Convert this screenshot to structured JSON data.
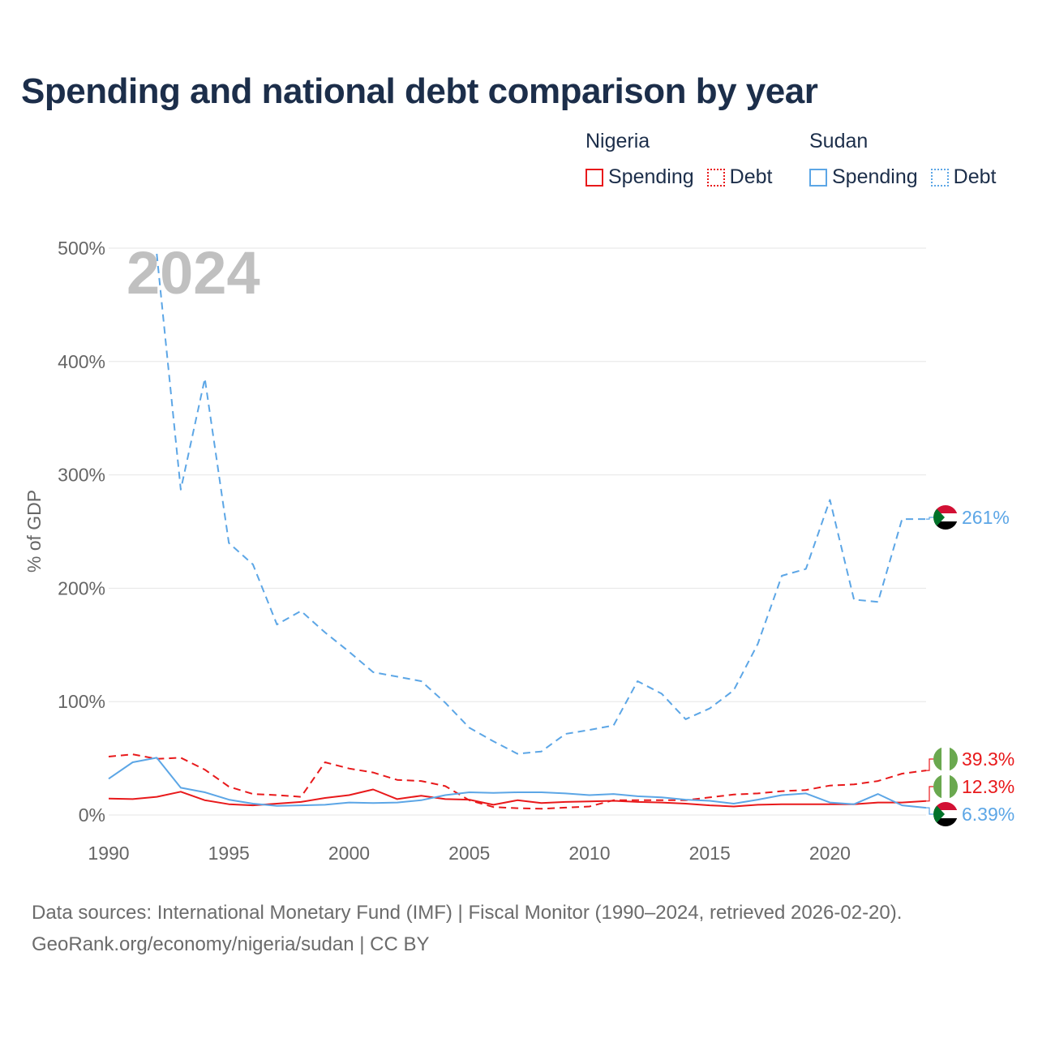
{
  "title": "Spending and national debt comparison by year",
  "legend": {
    "groups": [
      {
        "country": "Nigeria",
        "color": "#e8191b",
        "items": [
          "Spending",
          "Debt"
        ]
      },
      {
        "country": "Sudan",
        "color": "#5ca6e6",
        "items": [
          "Spending",
          "Debt"
        ]
      }
    ]
  },
  "footer": {
    "line1": "Data sources: International Monetary Fund (IMF) | Fiscal Monitor (1990–2024, retrieved 2026-02-20).",
    "line2": "GeoRank.org/economy/nigeria/sudan | CC BY"
  },
  "chart_data": {
    "type": "line",
    "year_label": "2024",
    "ylabel": "% of GDP",
    "ylim": [
      0,
      500
    ],
    "xlim": [
      1990,
      2024
    ],
    "yticks": [
      0,
      100,
      200,
      300,
      400,
      500
    ],
    "ytick_labels": [
      "0%",
      "100%",
      "200%",
      "300%",
      "400%",
      "500%"
    ],
    "xticks": [
      1990,
      1995,
      2000,
      2005,
      2010,
      2015,
      2020
    ],
    "xtick_labels": [
      "1990",
      "1995",
      "2000",
      "2005",
      "2010",
      "2015",
      "2020"
    ],
    "x": [
      1990,
      1991,
      1992,
      1993,
      1994,
      1995,
      1996,
      1997,
      1998,
      1999,
      2000,
      2001,
      2002,
      2003,
      2004,
      2005,
      2006,
      2007,
      2008,
      2009,
      2010,
      2011,
      2012,
      2013,
      2014,
      2015,
      2016,
      2017,
      2018,
      2019,
      2020,
      2021,
      2022,
      2023,
      2024
    ],
    "series": [
      {
        "name": "Nigeria Spending",
        "country": "Nigeria",
        "kind": "Spending",
        "color": "#e8191b",
        "dash": "",
        "values": [
          14.5,
          14,
          16,
          20.5,
          13,
          9.5,
          8.5,
          10,
          11.5,
          15,
          17.5,
          22.5,
          14,
          17,
          14,
          13.5,
          9,
          13,
          10.5,
          11.5,
          12,
          12.5,
          11.5,
          11,
          10,
          8.5,
          7.5,
          9,
          9.5,
          9.5,
          9.5,
          9.5,
          11,
          11,
          12.3
        ],
        "end_label": "12.3%"
      },
      {
        "name": "Nigeria Debt",
        "country": "Nigeria",
        "kind": "Debt",
        "color": "#e8191b",
        "dash": "9,6",
        "values": [
          51.5,
          53.5,
          49.5,
          50.5,
          40,
          25,
          18.5,
          17.5,
          16,
          46.5,
          41,
          37.5,
          31,
          30,
          25.5,
          13,
          7,
          6,
          5.5,
          6.5,
          7.5,
          13,
          13,
          13,
          13,
          15.5,
          18,
          19,
          21,
          22,
          26,
          27,
          30,
          36.5,
          39.3
        ],
        "end_label": "39.3%"
      },
      {
        "name": "Sudan Spending",
        "country": "Sudan",
        "kind": "Spending",
        "color": "#5ca6e6",
        "dash": "",
        "values": [
          32,
          46.5,
          50.5,
          24,
          20,
          13.5,
          10,
          8,
          8.5,
          9,
          11,
          10.5,
          11,
          13,
          17.5,
          20,
          19.5,
          20,
          20,
          19,
          17.5,
          18.5,
          16.5,
          15.5,
          13.5,
          12.5,
          10,
          13.5,
          17.5,
          19,
          11,
          9.5,
          18.5,
          8.5,
          6.39
        ],
        "end_label": "6.39%"
      },
      {
        "name": "Sudan Debt",
        "country": "Sudan",
        "kind": "Debt",
        "color": "#5ca6e6",
        "dash": "9,6",
        "values": [
          null,
          null,
          495,
          287,
          385,
          240,
          221,
          168,
          180,
          161,
          144,
          126,
          122,
          118,
          99,
          77,
          65,
          54,
          56,
          71.5,
          75,
          79,
          118,
          107,
          84.5,
          94,
          110,
          151,
          211,
          217,
          278,
          190,
          188,
          261,
          261
        ],
        "end_label": "261%"
      }
    ]
  }
}
